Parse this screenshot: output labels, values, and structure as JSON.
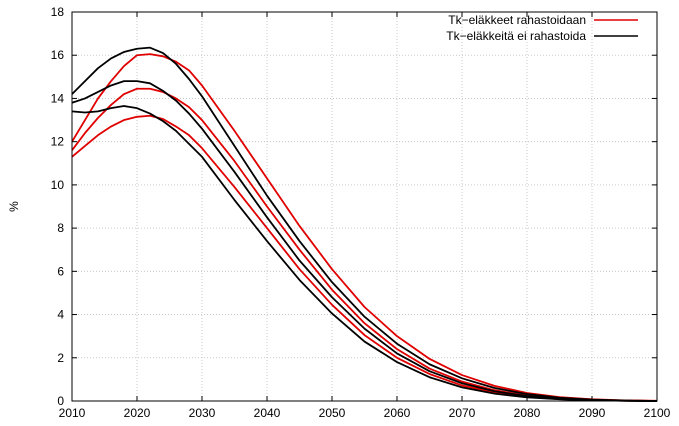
{
  "chart_data": {
    "type": "line",
    "title": "",
    "xlabel": "",
    "ylabel": "%",
    "xlim": [
      2010,
      2100
    ],
    "ylim": [
      0,
      18
    ],
    "x_ticks": [
      2010,
      2020,
      2030,
      2040,
      2050,
      2060,
      2070,
      2080,
      2090,
      2100
    ],
    "y_ticks": [
      0,
      2,
      4,
      6,
      8,
      10,
      12,
      14,
      16,
      18
    ],
    "grid": true,
    "legend_position": "top-right",
    "legend": [
      {
        "label": "Tk−eläkkeet rahastoidaan",
        "color": "#e00000"
      },
      {
        "label": "Tk−eläkkeitä ei rahastoida",
        "color": "#000000"
      }
    ],
    "series": [
      {
        "group": 0,
        "color": "#e00000",
        "points": [
          [
            2010,
            12.0
          ],
          [
            2012,
            13.0
          ],
          [
            2014,
            14.0
          ],
          [
            2016,
            14.8
          ],
          [
            2018,
            15.5
          ],
          [
            2020,
            16.0
          ],
          [
            2022,
            16.05
          ],
          [
            2024,
            15.95
          ],
          [
            2026,
            15.7
          ],
          [
            2028,
            15.3
          ],
          [
            2030,
            14.6
          ],
          [
            2035,
            12.5
          ],
          [
            2040,
            10.3
          ],
          [
            2045,
            8.1
          ],
          [
            2050,
            6.1
          ],
          [
            2055,
            4.35
          ],
          [
            2060,
            3.0
          ],
          [
            2065,
            1.95
          ],
          [
            2070,
            1.2
          ],
          [
            2075,
            0.7
          ],
          [
            2080,
            0.37
          ],
          [
            2085,
            0.18
          ],
          [
            2090,
            0.08
          ],
          [
            2095,
            0.03
          ],
          [
            2100,
            0.01
          ]
        ]
      },
      {
        "group": 0,
        "color": "#e00000",
        "points": [
          [
            2010,
            11.6
          ],
          [
            2012,
            12.4
          ],
          [
            2014,
            13.1
          ],
          [
            2016,
            13.7
          ],
          [
            2018,
            14.2
          ],
          [
            2020,
            14.45
          ],
          [
            2022,
            14.45
          ],
          [
            2024,
            14.3
          ],
          [
            2026,
            14.0
          ],
          [
            2028,
            13.6
          ],
          [
            2030,
            13.0
          ],
          [
            2035,
            11.1
          ],
          [
            2040,
            9.0
          ],
          [
            2045,
            7.0
          ],
          [
            2050,
            5.15
          ],
          [
            2055,
            3.6
          ],
          [
            2060,
            2.4
          ],
          [
            2065,
            1.5
          ],
          [
            2070,
            0.9
          ],
          [
            2075,
            0.5
          ],
          [
            2080,
            0.25
          ],
          [
            2085,
            0.12
          ],
          [
            2090,
            0.05
          ],
          [
            2095,
            0.02
          ],
          [
            2100,
            0.0
          ]
        ]
      },
      {
        "group": 0,
        "color": "#e00000",
        "points": [
          [
            2010,
            11.3
          ],
          [
            2012,
            11.8
          ],
          [
            2014,
            12.3
          ],
          [
            2016,
            12.7
          ],
          [
            2018,
            13.0
          ],
          [
            2020,
            13.15
          ],
          [
            2022,
            13.2
          ],
          [
            2024,
            13.05
          ],
          [
            2026,
            12.7
          ],
          [
            2028,
            12.3
          ],
          [
            2030,
            11.7
          ],
          [
            2035,
            9.9
          ],
          [
            2040,
            8.0
          ],
          [
            2045,
            6.1
          ],
          [
            2050,
            4.45
          ],
          [
            2055,
            3.05
          ],
          [
            2060,
            2.0
          ],
          [
            2065,
            1.25
          ],
          [
            2070,
            0.72
          ],
          [
            2075,
            0.4
          ],
          [
            2080,
            0.2
          ],
          [
            2085,
            0.09
          ],
          [
            2090,
            0.04
          ],
          [
            2095,
            0.01
          ],
          [
            2100,
            0.0
          ]
        ]
      },
      {
        "group": 1,
        "color": "#000000",
        "points": [
          [
            2010,
            14.2
          ],
          [
            2012,
            14.8
          ],
          [
            2014,
            15.4
          ],
          [
            2016,
            15.85
          ],
          [
            2018,
            16.15
          ],
          [
            2020,
            16.3
          ],
          [
            2022,
            16.35
          ],
          [
            2024,
            16.1
          ],
          [
            2026,
            15.6
          ],
          [
            2028,
            14.9
          ],
          [
            2030,
            14.1
          ],
          [
            2035,
            11.8
          ],
          [
            2040,
            9.5
          ],
          [
            2045,
            7.4
          ],
          [
            2050,
            5.5
          ],
          [
            2055,
            3.9
          ],
          [
            2060,
            2.65
          ],
          [
            2065,
            1.7
          ],
          [
            2070,
            1.05
          ],
          [
            2075,
            0.6
          ],
          [
            2080,
            0.32
          ],
          [
            2085,
            0.15
          ],
          [
            2090,
            0.06
          ],
          [
            2095,
            0.02
          ],
          [
            2100,
            0.0
          ]
        ]
      },
      {
        "group": 1,
        "color": "#000000",
        "points": [
          [
            2010,
            13.8
          ],
          [
            2012,
            14.0
          ],
          [
            2014,
            14.3
          ],
          [
            2016,
            14.6
          ],
          [
            2018,
            14.8
          ],
          [
            2020,
            14.8
          ],
          [
            2022,
            14.7
          ],
          [
            2024,
            14.35
          ],
          [
            2026,
            13.9
          ],
          [
            2028,
            13.3
          ],
          [
            2030,
            12.6
          ],
          [
            2035,
            10.6
          ],
          [
            2040,
            8.5
          ],
          [
            2045,
            6.5
          ],
          [
            2050,
            4.8
          ],
          [
            2055,
            3.35
          ],
          [
            2060,
            2.2
          ],
          [
            2065,
            1.38
          ],
          [
            2070,
            0.82
          ],
          [
            2075,
            0.45
          ],
          [
            2080,
            0.23
          ],
          [
            2085,
            0.1
          ],
          [
            2090,
            0.04
          ],
          [
            2095,
            0.01
          ],
          [
            2100,
            0.0
          ]
        ]
      },
      {
        "group": 1,
        "color": "#000000",
        "points": [
          [
            2010,
            13.4
          ],
          [
            2012,
            13.35
          ],
          [
            2014,
            13.4
          ],
          [
            2016,
            13.55
          ],
          [
            2018,
            13.65
          ],
          [
            2020,
            13.55
          ],
          [
            2022,
            13.3
          ],
          [
            2024,
            12.95
          ],
          [
            2026,
            12.5
          ],
          [
            2028,
            11.9
          ],
          [
            2030,
            11.3
          ],
          [
            2035,
            9.3
          ],
          [
            2040,
            7.4
          ],
          [
            2045,
            5.6
          ],
          [
            2050,
            4.05
          ],
          [
            2055,
            2.75
          ],
          [
            2060,
            1.8
          ],
          [
            2065,
            1.1
          ],
          [
            2070,
            0.63
          ],
          [
            2075,
            0.34
          ],
          [
            2080,
            0.17
          ],
          [
            2085,
            0.08
          ],
          [
            2090,
            0.03
          ],
          [
            2095,
            0.01
          ],
          [
            2100,
            0.0
          ]
        ]
      }
    ]
  }
}
